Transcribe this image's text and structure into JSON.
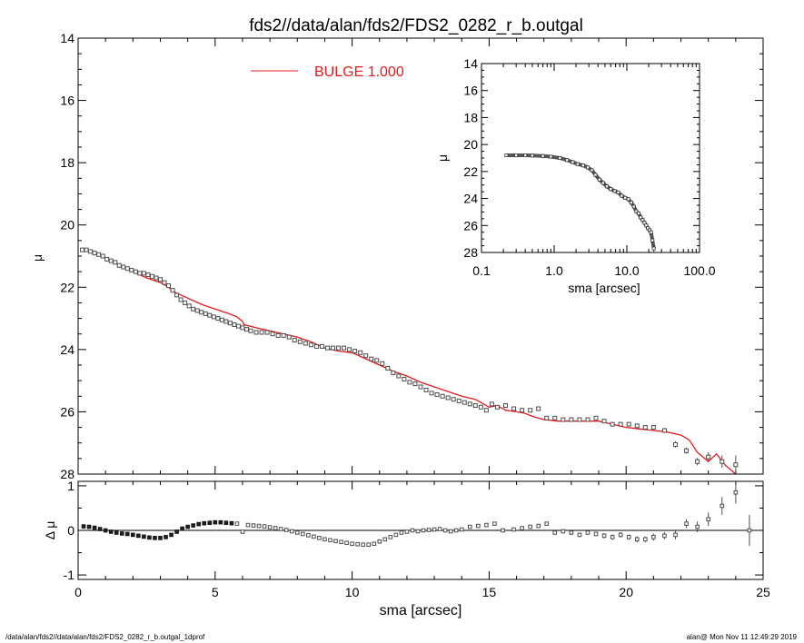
{
  "title": "fds2//data/alan/fds2/FDS2_0282_r_b.outgal",
  "footer_left": "/data/alan/fds2//data/alan/fds2/FDS2_0282_r_b.outgal_1dprof",
  "footer_right": "alan@  Mon Nov 11 12:49:29 2019",
  "colors": {
    "model": "#e41a1c",
    "data": "#4d4d4d",
    "axes": "#000000"
  },
  "chart_data": [
    {
      "type": "scatter",
      "panel": "main",
      "title": "fds2//data/alan/fds2/FDS2_0282_r_b.outgal",
      "xlabel": "sma [arcsec]",
      "ylabel": "μ",
      "xlim": [
        0,
        25
      ],
      "ylim": [
        28,
        14
      ],
      "yreversed": true,
      "xticks": [
        "0",
        "5",
        "10",
        "15",
        "20",
        "25"
      ],
      "yticks": [
        "14",
        "16",
        "18",
        "20",
        "22",
        "24",
        "26",
        "28"
      ],
      "legend": {
        "label": "BULGE  1.000",
        "placement": "top-center"
      },
      "series": [
        {
          "name": "BULGE  1.000",
          "kind": "line",
          "x": [
            0.2,
            0.5,
            1.0,
            1.5,
            2.0,
            2.5,
            3.0,
            3.3,
            3.5,
            4.0,
            4.5,
            5.0,
            5.5,
            5.8,
            6.0,
            6.05,
            6.5,
            7.0,
            7.5,
            8.0,
            8.5,
            9.0,
            9.5,
            10.0,
            10.5,
            11.0,
            11.5,
            12.0,
            12.5,
            13.0,
            13.5,
            14.0,
            14.5,
            15.0,
            15.3,
            15.6,
            16.0,
            16.3,
            16.6,
            17.0,
            17.5,
            18.0,
            18.5,
            19.0,
            19.5,
            20.0,
            20.5,
            21.0,
            21.5,
            22.0,
            22.3,
            22.6,
            23.0,
            23.3,
            23.6,
            24.0
          ],
          "y": [
            20.75,
            20.85,
            21.05,
            21.3,
            21.5,
            21.7,
            21.85,
            22.0,
            22.15,
            22.35,
            22.55,
            22.7,
            22.85,
            22.95,
            23.1,
            23.2,
            23.3,
            23.4,
            23.5,
            23.6,
            23.75,
            23.95,
            24.05,
            24.1,
            24.3,
            24.5,
            24.7,
            24.85,
            25.05,
            25.2,
            25.35,
            25.5,
            25.6,
            25.85,
            25.8,
            25.95,
            26.0,
            26.05,
            26.15,
            26.25,
            26.3,
            26.3,
            26.3,
            26.3,
            26.4,
            26.5,
            26.55,
            26.6,
            26.65,
            26.75,
            26.9,
            27.3,
            27.6,
            27.35,
            27.7,
            28.0
          ]
        },
        {
          "name": "",
          "kind": "points",
          "marker": "open-square",
          "x": [
            0.15,
            0.3,
            0.45,
            0.6,
            0.75,
            0.9,
            1.05,
            1.2,
            1.35,
            1.5,
            1.65,
            1.8,
            1.95,
            2.1,
            2.25,
            2.4,
            2.55,
            2.7,
            2.85,
            3.0,
            3.15,
            3.3,
            3.45,
            3.6,
            3.75,
            3.9,
            4.05,
            4.2,
            4.35,
            4.5,
            4.65,
            4.8,
            4.95,
            5.1,
            5.25,
            5.4,
            5.55,
            5.7,
            5.85,
            6.0,
            6.15,
            6.3,
            6.5,
            6.7,
            6.9,
            7.1,
            7.3,
            7.5,
            7.7,
            7.9,
            8.1,
            8.3,
            8.5,
            8.7,
            8.9,
            9.1,
            9.3,
            9.5,
            9.7,
            9.9,
            10.1,
            10.3,
            10.5,
            10.7,
            10.9,
            11.1,
            11.3,
            11.5,
            11.7,
            11.9,
            12.1,
            12.3,
            12.5,
            12.7,
            12.9,
            13.1,
            13.3,
            13.5,
            13.7,
            13.9,
            14.1,
            14.3,
            14.5,
            14.7,
            14.9,
            15.1,
            15.3,
            15.6,
            15.9,
            16.2,
            16.5,
            16.8,
            17.1,
            17.4,
            17.7,
            18.0,
            18.3,
            18.6,
            18.9,
            19.2,
            19.5,
            19.8,
            20.1,
            20.4,
            20.7,
            21.0,
            21.4,
            21.8,
            22.2,
            22.6,
            23.0,
            23.5,
            24.0
          ],
          "y": [
            20.8,
            20.8,
            20.85,
            20.9,
            20.95,
            21.0,
            21.1,
            21.15,
            21.2,
            21.3,
            21.35,
            21.4,
            21.45,
            21.5,
            21.55,
            21.55,
            21.6,
            21.65,
            21.7,
            21.75,
            21.85,
            21.95,
            22.1,
            22.25,
            22.4,
            22.5,
            22.6,
            22.7,
            22.75,
            22.8,
            22.85,
            22.9,
            22.95,
            23.0,
            23.05,
            23.1,
            23.15,
            23.2,
            23.25,
            23.3,
            23.35,
            23.4,
            23.45,
            23.45,
            23.45,
            23.5,
            23.55,
            23.55,
            23.6,
            23.7,
            23.75,
            23.8,
            23.85,
            23.9,
            23.9,
            23.95,
            23.95,
            23.95,
            23.95,
            24.0,
            24.05,
            24.1,
            24.2,
            24.3,
            24.35,
            24.45,
            24.6,
            24.75,
            24.85,
            24.95,
            25.05,
            25.1,
            25.2,
            25.3,
            25.4,
            25.45,
            25.5,
            25.55,
            25.6,
            25.65,
            25.7,
            25.75,
            25.8,
            25.85,
            25.95,
            25.75,
            25.85,
            25.8,
            25.9,
            25.95,
            25.95,
            25.9,
            26.2,
            26.2,
            26.25,
            26.25,
            26.25,
            26.25,
            26.2,
            26.3,
            26.4,
            26.4,
            26.4,
            26.45,
            26.5,
            26.5,
            26.6,
            27.05,
            27.25,
            27.6,
            27.45,
            27.6,
            27.7
          ],
          "errors": [
            0.02,
            0.02,
            0.02,
            0.02,
            0.02,
            0.02,
            0.02,
            0.02,
            0.02,
            0.02,
            0.02,
            0.02,
            0.02,
            0.02,
            0.02,
            0.02,
            0.02,
            0.02,
            0.02,
            0.02,
            0.02,
            0.02,
            0.02,
            0.02,
            0.02,
            0.02,
            0.02,
            0.02,
            0.02,
            0.02,
            0.02,
            0.02,
            0.02,
            0.02,
            0.02,
            0.02,
            0.02,
            0.02,
            0.02,
            0.02,
            0.02,
            0.02,
            0.02,
            0.02,
            0.02,
            0.02,
            0.02,
            0.02,
            0.02,
            0.02,
            0.02,
            0.02,
            0.02,
            0.02,
            0.02,
            0.02,
            0.02,
            0.02,
            0.02,
            0.02,
            0.02,
            0.02,
            0.02,
            0.02,
            0.02,
            0.02,
            0.02,
            0.02,
            0.02,
            0.02,
            0.02,
            0.02,
            0.02,
            0.02,
            0.02,
            0.02,
            0.02,
            0.02,
            0.02,
            0.02,
            0.02,
            0.02,
            0.02,
            0.02,
            0.05,
            0.05,
            0.05,
            0.05,
            0.05,
            0.05,
            0.05,
            0.05,
            0.05,
            0.05,
            0.05,
            0.05,
            0.05,
            0.05,
            0.05,
            0.05,
            0.05,
            0.05,
            0.05,
            0.05,
            0.05,
            0.08,
            0.08,
            0.1,
            0.1,
            0.12,
            0.15,
            0.2,
            0.3
          ]
        }
      ]
    },
    {
      "type": "scatter",
      "panel": "residual",
      "xlabel": "sma [arcsec]",
      "ylabel": "Δ μ",
      "xlim": [
        0,
        25
      ],
      "ylim": [
        -1.1,
        1.1
      ],
      "xticks": [
        "0",
        "5",
        "10",
        "15",
        "20",
        "25"
      ],
      "yticks": [
        "-1",
        "0",
        "1"
      ],
      "reference_line": 0,
      "series": [
        {
          "name": "",
          "kind": "points",
          "x": [
            0.2,
            0.4,
            0.6,
            0.8,
            1.0,
            1.2,
            1.4,
            1.6,
            1.8,
            2.0,
            2.2,
            2.4,
            2.6,
            2.8,
            3.0,
            3.2,
            3.4,
            3.6,
            3.8,
            4.0,
            4.2,
            4.4,
            4.6,
            4.8,
            5.0,
            5.2,
            5.4,
            5.6,
            5.8,
            6.0,
            6.2,
            6.4,
            6.6,
            6.8,
            7.0,
            7.2,
            7.4,
            7.6,
            7.8,
            8.0,
            8.2,
            8.4,
            8.6,
            8.8,
            9.0,
            9.2,
            9.4,
            9.6,
            9.8,
            10.0,
            10.2,
            10.4,
            10.6,
            10.8,
            11.0,
            11.2,
            11.4,
            11.6,
            11.8,
            12.0,
            12.2,
            12.4,
            12.6,
            12.8,
            13.0,
            13.2,
            13.4,
            13.6,
            13.8,
            14.0,
            14.3,
            14.6,
            14.9,
            15.2,
            15.5,
            15.9,
            16.2,
            16.5,
            16.8,
            17.1,
            17.4,
            17.7,
            18.0,
            18.3,
            18.6,
            18.9,
            19.2,
            19.5,
            19.8,
            20.1,
            20.4,
            20.7,
            21.0,
            21.4,
            21.8,
            22.2,
            22.6,
            23.0,
            23.5,
            24.0,
            24.5
          ],
          "y": [
            0.09,
            0.08,
            0.06,
            0.03,
            0.0,
            -0.03,
            -0.05,
            -0.07,
            -0.08,
            -0.1,
            -0.12,
            -0.14,
            -0.16,
            -0.17,
            -0.17,
            -0.15,
            -0.1,
            -0.03,
            0.04,
            0.08,
            0.11,
            0.14,
            0.16,
            0.17,
            0.18,
            0.18,
            0.17,
            0.16,
            0.15,
            -0.03,
            0.12,
            0.11,
            0.1,
            0.09,
            0.07,
            0.05,
            0.03,
            0.01,
            -0.02,
            -0.05,
            -0.08,
            -0.11,
            -0.14,
            -0.17,
            -0.2,
            -0.22,
            -0.24,
            -0.26,
            -0.28,
            -0.3,
            -0.31,
            -0.32,
            -0.32,
            -0.3,
            -0.25,
            -0.2,
            -0.15,
            -0.1,
            -0.05,
            -0.03,
            0.0,
            -0.02,
            0.0,
            0.01,
            0.02,
            0.03,
            0.0,
            -0.02,
            0.0,
            0.02,
            0.08,
            0.1,
            0.12,
            0.15,
            0.0,
            0.02,
            0.05,
            0.08,
            0.1,
            0.15,
            -0.05,
            -0.02,
            -0.05,
            -0.1,
            -0.05,
            -0.08,
            -0.12,
            -0.15,
            -0.1,
            -0.15,
            -0.2,
            -0.2,
            -0.15,
            -0.12,
            -0.1,
            0.15,
            0.08,
            0.25,
            0.55,
            0.85,
            0.0
          ],
          "errors": [
            0.01,
            0.01,
            0.01,
            0.01,
            0.01,
            0.01,
            0.01,
            0.01,
            0.01,
            0.01,
            0.01,
            0.01,
            0.01,
            0.01,
            0.01,
            0.01,
            0.01,
            0.01,
            0.01,
            0.01,
            0.01,
            0.01,
            0.01,
            0.01,
            0.01,
            0.01,
            0.01,
            0.01,
            0.01,
            0.01,
            0.01,
            0.01,
            0.01,
            0.01,
            0.01,
            0.01,
            0.01,
            0.01,
            0.01,
            0.01,
            0.01,
            0.01,
            0.01,
            0.01,
            0.01,
            0.01,
            0.01,
            0.01,
            0.01,
            0.01,
            0.01,
            0.01,
            0.01,
            0.01,
            0.01,
            0.01,
            0.01,
            0.01,
            0.01,
            0.01,
            0.01,
            0.01,
            0.01,
            0.01,
            0.01,
            0.01,
            0.01,
            0.01,
            0.01,
            0.01,
            0.01,
            0.03,
            0.03,
            0.03,
            0.03,
            0.03,
            0.04,
            0.04,
            0.04,
            0.04,
            0.05,
            0.05,
            0.05,
            0.05,
            0.05,
            0.05,
            0.06,
            0.06,
            0.06,
            0.06,
            0.07,
            0.07,
            0.08,
            0.08,
            0.1,
            0.1,
            0.12,
            0.15,
            0.2,
            0.25,
            0.35
          ]
        }
      ]
    },
    {
      "type": "scatter",
      "panel": "inset",
      "xlabel": "sma [arcsec]",
      "ylabel": "μ",
      "xscale": "log",
      "xlim": [
        0.1,
        100
      ],
      "ylim": [
        28,
        14
      ],
      "yreversed": true,
      "xticks": [
        "0.1",
        "1.0",
        "10.0",
        "100.0"
      ],
      "yticks": [
        "14",
        "16",
        "18",
        "20",
        "22",
        "24",
        "26",
        "28"
      ],
      "series": [
        {
          "name": "",
          "kind": "points",
          "x": [
            0.22,
            0.3,
            0.4,
            0.5,
            0.7,
            0.9,
            1.2,
            1.5,
            1.8,
            2.1,
            2.5,
            2.9,
            3.3,
            3.7,
            4.2,
            4.7,
            5.3,
            6.0,
            6.8,
            7.6,
            8.5,
            9.5,
            10.5,
            11.5,
            12.5,
            13.5,
            14.5,
            15.5,
            16.5,
            17.5,
            18.5,
            19.5,
            20.5,
            21.5,
            22.5,
            23.5
          ],
          "y": [
            20.8,
            20.8,
            20.8,
            20.82,
            20.85,
            20.9,
            21.0,
            21.15,
            21.3,
            21.45,
            21.55,
            21.7,
            21.9,
            22.25,
            22.6,
            22.85,
            23.1,
            23.3,
            23.45,
            23.55,
            23.8,
            23.95,
            24.05,
            24.3,
            24.6,
            24.95,
            25.1,
            25.4,
            25.6,
            25.8,
            26.0,
            26.2,
            26.35,
            26.5,
            27.1,
            27.7
          ],
          "errors": [
            0.02,
            0.02,
            0.02,
            0.02,
            0.02,
            0.02,
            0.02,
            0.02,
            0.02,
            0.02,
            0.02,
            0.02,
            0.02,
            0.02,
            0.02,
            0.02,
            0.02,
            0.02,
            0.02,
            0.02,
            0.02,
            0.02,
            0.02,
            0.03,
            0.03,
            0.03,
            0.04,
            0.04,
            0.05,
            0.05,
            0.06,
            0.07,
            0.08,
            0.1,
            0.15,
            0.25
          ]
        }
      ]
    }
  ]
}
